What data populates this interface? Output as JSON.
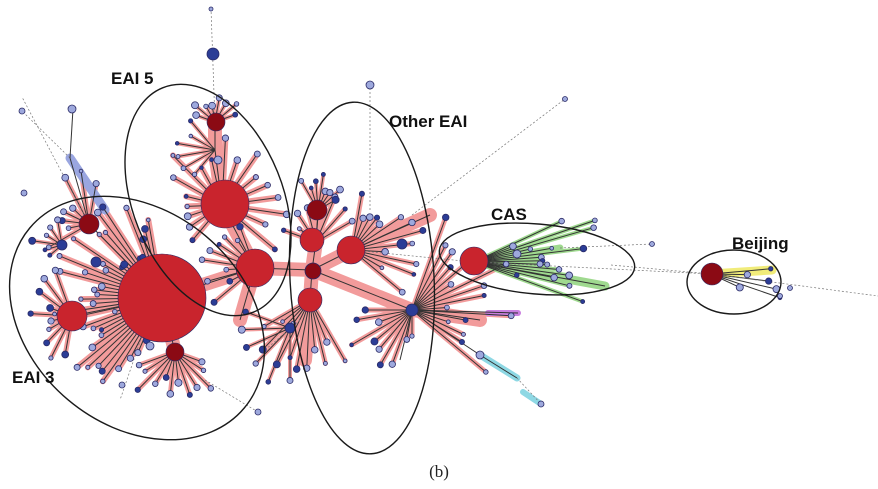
{
  "figure": {
    "caption": "(b)",
    "clusters": [
      {
        "id": "eai5",
        "label": "EAI 5"
      },
      {
        "id": "other-eai",
        "label": "Other EAI"
      },
      {
        "id": "cas",
        "label": "CAS"
      },
      {
        "id": "beijing",
        "label": "Beijing"
      },
      {
        "id": "eai3",
        "label": "EAI 3"
      }
    ],
    "colors": {
      "eai_halo": "#f29b9b",
      "cas_halo": "#9fd98f",
      "beijing_halo": "#f1ec7a",
      "cyan_halo": "#8ed8e4",
      "purple_halo": "#c97fe0",
      "lavender_halo": "#9aa6e0",
      "node_red": "#c9242d",
      "node_darkred": "#8b0a14",
      "node_blue": "#2b3d96",
      "node_lightblue": "#9ea9dd",
      "edge": "#333333",
      "ellipse": "#1a1a1a"
    }
  }
}
